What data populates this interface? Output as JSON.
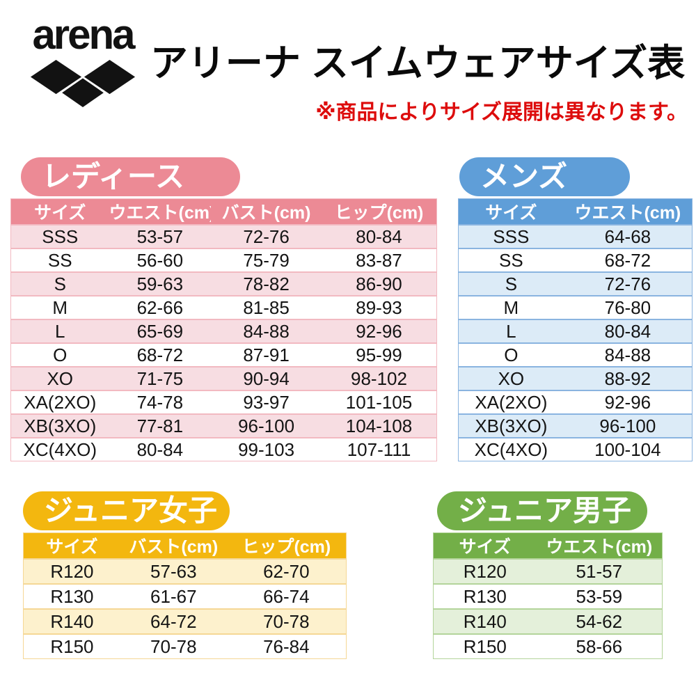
{
  "header": {
    "logo_text": "arena",
    "title": "アリーナ スイムウェアサイズ表",
    "note": "※商品によりサイズ展開は異なります。",
    "note_color": "#dd0c0c",
    "title_color": "#0a0a0a"
  },
  "tables": {
    "ladies": {
      "badge": "レディース",
      "accent": "#ec8a95",
      "row_tint": "#f7dde2",
      "border": "#f2b9c1",
      "columns": [
        "サイズ",
        "ウエスト(cm)",
        "バスト(cm)",
        "ヒップ(cm)"
      ],
      "rows": [
        [
          "SSS",
          "53-57",
          "72-76",
          "80-84"
        ],
        [
          "SS",
          "56-60",
          "75-79",
          "83-87"
        ],
        [
          "S",
          "59-63",
          "78-82",
          "86-90"
        ],
        [
          "M",
          "62-66",
          "81-85",
          "89-93"
        ],
        [
          "L",
          "65-69",
          "84-88",
          "92-96"
        ],
        [
          "O",
          "68-72",
          "87-91",
          "95-99"
        ],
        [
          "XO",
          "71-75",
          "90-94",
          "98-102"
        ],
        [
          "XA(2XO)",
          "74-78",
          "93-97",
          "101-105"
        ],
        [
          "XB(3XO)",
          "77-81",
          "96-100",
          "104-108"
        ],
        [
          "XC(4XO)",
          "80-84",
          "99-103",
          "107-111"
        ]
      ]
    },
    "mens": {
      "badge": "メンズ",
      "accent": "#5f9ed8",
      "row_tint": "#dcebf7",
      "border": "#8ab4e0",
      "columns": [
        "サイズ",
        "ウエスト(cm)"
      ],
      "rows": [
        [
          "SSS",
          "64-68"
        ],
        [
          "SS",
          "68-72"
        ],
        [
          "S",
          "72-76"
        ],
        [
          "M",
          "76-80"
        ],
        [
          "L",
          "80-84"
        ],
        [
          "O",
          "84-88"
        ],
        [
          "XO",
          "88-92"
        ],
        [
          "XA(2XO)",
          "92-96"
        ],
        [
          "XB(3XO)",
          "96-100"
        ],
        [
          "XC(4XO)",
          "100-104"
        ]
      ]
    },
    "junior_girls": {
      "badge": "ジュニア女子",
      "accent": "#f3b70f",
      "row_tint": "#fdf1cd",
      "border": "#f5d795",
      "columns": [
        "サイズ",
        "バスト(cm)",
        "ヒップ(cm)"
      ],
      "rows": [
        [
          "R120",
          "57-63",
          "62-70"
        ],
        [
          "R130",
          "61-67",
          "66-74"
        ],
        [
          "R140",
          "64-72",
          "70-78"
        ],
        [
          "R150",
          "70-78",
          "76-84"
        ]
      ]
    },
    "junior_boys": {
      "badge": "ジュニア男子",
      "accent": "#73af48",
      "row_tint": "#e4f0da",
      "border": "#b3d49a",
      "columns": [
        "サイズ",
        "ウエスト(cm)"
      ],
      "rows": [
        [
          "R120",
          "51-57"
        ],
        [
          "R130",
          "53-59"
        ],
        [
          "R140",
          "54-62"
        ],
        [
          "R150",
          "58-66"
        ]
      ]
    }
  }
}
